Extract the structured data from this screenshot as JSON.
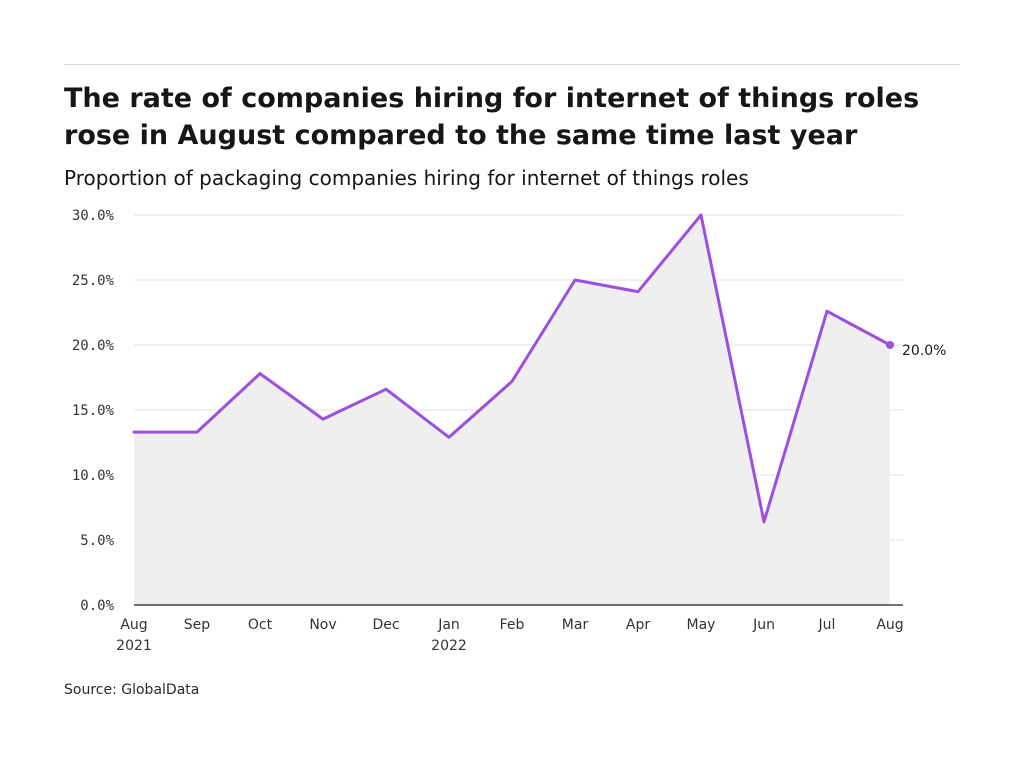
{
  "chart_data": {
    "type": "area",
    "title": "The rate of companies hiring for internet of things roles rose in August compared to the same time last year",
    "subtitle": "Proportion of packaging companies hiring for internet of things roles",
    "source": "Source: GlobalData",
    "categories": [
      [
        "Aug",
        "2021"
      ],
      [
        "Sep"
      ],
      [
        "Oct"
      ],
      [
        "Nov"
      ],
      [
        "Dec"
      ],
      [
        "Jan",
        "2022"
      ],
      [
        "Feb"
      ],
      [
        "Mar"
      ],
      [
        "Apr"
      ],
      [
        "May"
      ],
      [
        "Jun"
      ],
      [
        "Jul"
      ],
      [
        "Aug"
      ]
    ],
    "values": [
      13.3,
      13.3,
      17.8,
      14.3,
      16.6,
      12.9,
      17.2,
      25.0,
      24.1,
      30.0,
      6.4,
      22.6,
      20.0
    ],
    "y_ticks": [
      "0.0%",
      "5.0%",
      "10.0%",
      "15.0%",
      "20.0%",
      "25.0%",
      "30.0%"
    ],
    "ylim": [
      0,
      30
    ],
    "end_label": "20.0%",
    "grid": "horizontal",
    "colors": {
      "line": "#9d4fe0",
      "fill": "#efefef",
      "grid": "#e0e0e0",
      "axis": "#222222"
    }
  }
}
